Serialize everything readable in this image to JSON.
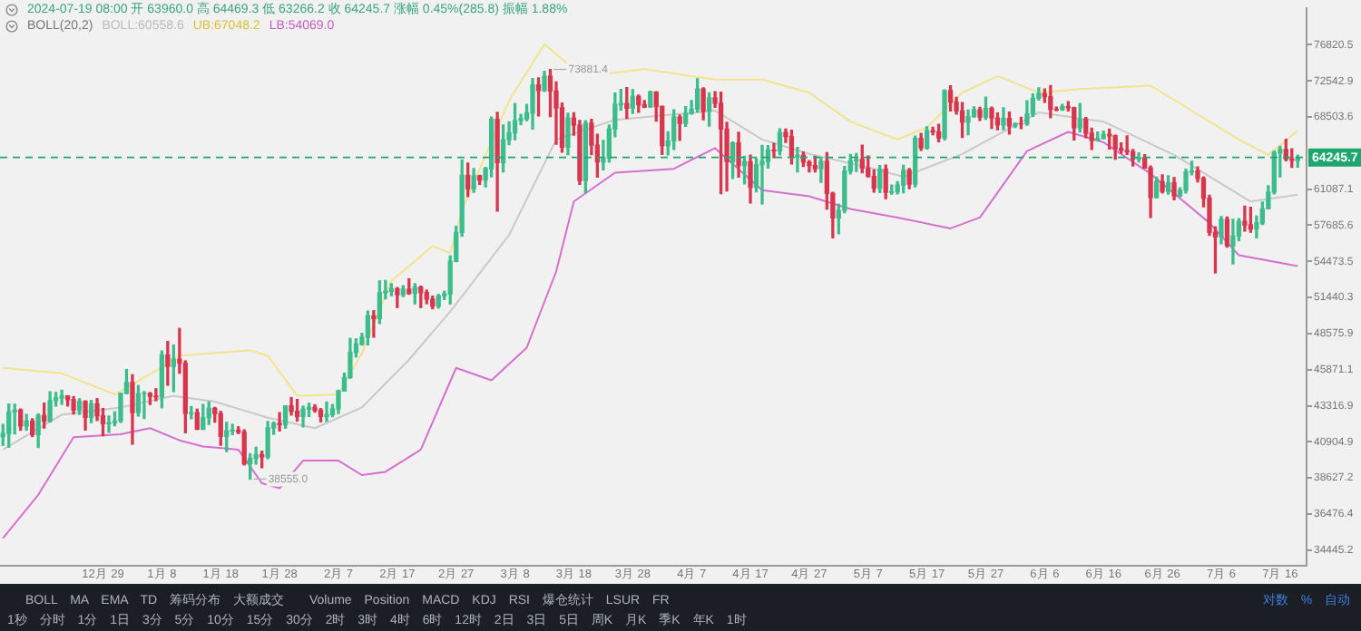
{
  "chart_data": {
    "type": "candlestick",
    "log": true,
    "x": [
      "2023-12-12",
      "2023-12-13",
      "2023-12-14",
      "2023-12-15",
      "2023-12-16",
      "2023-12-17",
      "2023-12-18",
      "2023-12-19",
      "2023-12-20",
      "2023-12-21",
      "2023-12-22",
      "2023-12-23",
      "2023-12-24",
      "2023-12-25",
      "2023-12-26",
      "2023-12-27",
      "2023-12-28",
      "2023-12-29",
      "2023-12-30",
      "2023-12-31",
      "2024-01-01",
      "2024-01-02",
      "2024-01-03",
      "2024-01-04",
      "2024-01-05",
      "2024-01-06",
      "2024-01-07",
      "2024-01-08",
      "2024-01-09",
      "2024-01-10",
      "2024-01-11",
      "2024-01-12",
      "2024-01-13",
      "2024-01-14",
      "2024-01-15",
      "2024-01-16",
      "2024-01-17",
      "2024-01-18",
      "2024-01-19",
      "2024-01-20",
      "2024-01-21",
      "2024-01-22",
      "2024-01-23",
      "2024-01-24",
      "2024-01-25",
      "2024-01-26",
      "2024-01-27",
      "2024-01-28",
      "2024-01-29",
      "2024-01-30",
      "2024-01-31",
      "2024-02-01",
      "2024-02-02",
      "2024-02-03",
      "2024-02-04",
      "2024-02-05",
      "2024-02-06",
      "2024-02-07",
      "2024-02-08",
      "2024-02-09",
      "2024-02-10",
      "2024-02-11",
      "2024-02-12",
      "2024-02-13",
      "2024-02-14",
      "2024-02-15",
      "2024-02-16",
      "2024-02-17",
      "2024-02-18",
      "2024-02-19",
      "2024-02-20",
      "2024-02-21",
      "2024-02-22",
      "2024-02-23",
      "2024-02-24",
      "2024-02-25",
      "2024-02-26",
      "2024-02-27",
      "2024-02-28",
      "2024-02-29",
      "2024-03-01",
      "2024-03-02",
      "2024-03-03",
      "2024-03-04",
      "2024-03-05",
      "2024-03-06",
      "2024-03-07",
      "2024-03-08",
      "2024-03-09",
      "2024-03-10",
      "2024-03-11",
      "2024-03-12",
      "2024-03-13",
      "2024-03-14",
      "2024-03-15",
      "2024-03-16",
      "2024-03-17",
      "2024-03-18",
      "2024-03-19",
      "2024-03-20",
      "2024-03-21",
      "2024-03-22",
      "2024-03-23",
      "2024-03-24",
      "2024-03-25",
      "2024-03-26",
      "2024-03-27",
      "2024-03-28",
      "2024-03-29",
      "2024-03-30",
      "2024-03-31",
      "2024-04-01",
      "2024-04-02",
      "2024-04-03",
      "2024-04-04",
      "2024-04-05",
      "2024-04-06",
      "2024-04-07",
      "2024-04-08",
      "2024-04-09",
      "2024-04-10",
      "2024-04-11",
      "2024-04-12",
      "2024-04-13",
      "2024-04-14",
      "2024-04-15",
      "2024-04-16",
      "2024-04-17",
      "2024-04-18",
      "2024-04-19",
      "2024-04-20",
      "2024-04-21",
      "2024-04-22",
      "2024-04-23",
      "2024-04-24",
      "2024-04-25",
      "2024-04-26",
      "2024-04-27",
      "2024-04-28",
      "2024-04-29",
      "2024-04-30",
      "2024-05-01",
      "2024-05-02",
      "2024-05-03",
      "2024-05-04",
      "2024-05-05",
      "2024-05-06",
      "2024-05-07",
      "2024-05-08",
      "2024-05-09",
      "2024-05-10",
      "2024-05-11",
      "2024-05-12",
      "2024-05-13",
      "2024-05-14",
      "2024-05-15",
      "2024-05-16",
      "2024-05-17",
      "2024-05-18",
      "2024-05-19",
      "2024-05-20",
      "2024-05-21",
      "2024-05-22",
      "2024-05-23",
      "2024-05-24",
      "2024-05-25",
      "2024-05-26",
      "2024-05-27",
      "2024-05-28",
      "2024-05-29",
      "2024-05-30",
      "2024-05-31",
      "2024-06-01",
      "2024-06-02",
      "2024-06-03",
      "2024-06-04",
      "2024-06-05",
      "2024-06-06",
      "2024-06-07",
      "2024-06-08",
      "2024-06-09",
      "2024-06-10",
      "2024-06-11",
      "2024-06-12",
      "2024-06-13",
      "2024-06-14",
      "2024-06-15",
      "2024-06-16",
      "2024-06-17",
      "2024-06-18",
      "2024-06-19",
      "2024-06-20",
      "2024-06-21",
      "2024-06-22",
      "2024-06-23",
      "2024-06-24",
      "2024-06-25",
      "2024-06-26",
      "2024-06-27",
      "2024-06-28",
      "2024-06-29",
      "2024-06-30",
      "2024-07-01",
      "2024-07-02",
      "2024-07-03",
      "2024-07-04",
      "2024-07-05",
      "2024-07-06",
      "2024-07-07",
      "2024-07-08",
      "2024-07-09",
      "2024-07-10",
      "2024-07-11",
      "2024-07-12",
      "2024-07-13",
      "2024-07-14",
      "2024-07-15",
      "2024-07-16",
      "2024-07-17",
      "2024-07-18",
      "2024-07-19"
    ],
    "ohlc": [
      [
        41243,
        42048,
        40676,
        41450
      ],
      [
        41450,
        43429,
        40555,
        42891
      ],
      [
        42891,
        43417,
        41424,
        43022
      ],
      [
        43022,
        43088,
        41666,
        41941
      ],
      [
        41941,
        42720,
        41666,
        42278
      ],
      [
        42278,
        42424,
        41249,
        41374
      ],
      [
        41374,
        42757,
        40542,
        42657
      ],
      [
        42657,
        43497,
        41811,
        42271
      ],
      [
        42271,
        44283,
        42213,
        43668
      ],
      [
        43668,
        44242,
        43291,
        43861
      ],
      [
        43861,
        44398,
        43412,
        43997
      ],
      [
        43997,
        43997,
        43300,
        43740
      ],
      [
        43740,
        43946,
        42748,
        43016
      ],
      [
        43016,
        43801,
        42720,
        43613
      ],
      [
        43613,
        43655,
        41676,
        42520
      ],
      [
        42520,
        43683,
        42167,
        43442
      ],
      [
        43442,
        43804,
        42318,
        42628
      ],
      [
        42628,
        43124,
        41300,
        42099
      ],
      [
        42099,
        42612,
        41520,
        42156
      ],
      [
        42156,
        42899,
        41965,
        42283
      ],
      [
        42283,
        44184,
        42180,
        44179
      ],
      [
        44179,
        45879,
        44148,
        44946
      ],
      [
        44946,
        45500,
        40750,
        42845
      ],
      [
        42845,
        44729,
        42613,
        44152
      ],
      [
        44152,
        44300,
        42450,
        44162
      ],
      [
        44162,
        44227,
        43400,
        43974
      ],
      [
        43974,
        44495,
        43662,
        43929
      ],
      [
        43929,
        47248,
        43175,
        46951
      ],
      [
        46951,
        47972,
        44748,
        46110
      ],
      [
        46110,
        47695,
        44300,
        46633
      ],
      [
        46633,
        48970,
        45606,
        46339
      ],
      [
        46339,
        46516,
        41500,
        42782
      ],
      [
        42782,
        43257,
        42436,
        42847
      ],
      [
        42847,
        43079,
        41720,
        41732
      ],
      [
        41732,
        43400,
        41718,
        42511
      ],
      [
        42511,
        43578,
        42050,
        43137
      ],
      [
        43137,
        43198,
        42200,
        42776
      ],
      [
        42776,
        42930,
        40683,
        41262
      ],
      [
        41262,
        42195,
        40280,
        41618
      ],
      [
        41618,
        42050,
        41380,
        41665
      ],
      [
        41665,
        41890,
        41446,
        41545
      ],
      [
        41545,
        41689,
        39431,
        39507
      ],
      [
        39507,
        40132,
        38555.0,
        39845
      ],
      [
        39845,
        40555,
        39485,
        40077
      ],
      [
        40077,
        40300,
        39261,
        39934
      ],
      [
        39934,
        42246,
        39822,
        41816
      ],
      [
        41816,
        42200,
        41394,
        42120
      ],
      [
        42120,
        42842,
        41620,
        42031
      ],
      [
        42031,
        43305,
        41804,
        43302
      ],
      [
        43302,
        43882,
        42683,
        42941
      ],
      [
        42941,
        43745,
        42276,
        42580
      ],
      [
        42580,
        43285,
        41884,
        43082
      ],
      [
        43082,
        43488,
        42574,
        43200
      ],
      [
        43200,
        43380,
        42880,
        43011
      ],
      [
        43011,
        43119,
        42222,
        42582
      ],
      [
        42582,
        43569,
        42258,
        42708
      ],
      [
        42708,
        43399,
        42574,
        43099
      ],
      [
        43099,
        44396,
        42788,
        44339
      ],
      [
        44339,
        45614,
        44332,
        45301
      ],
      [
        45301,
        48200,
        45243,
        47147
      ],
      [
        47147,
        48170,
        46800,
        47771
      ],
      [
        47771,
        48592,
        47691,
        48293
      ],
      [
        48293,
        50334,
        47710,
        49958
      ],
      [
        49958,
        50368,
        48300,
        49743
      ],
      [
        49743,
        52816,
        49357,
        51826
      ],
      [
        51826,
        52849,
        51325,
        51939
      ],
      [
        51939,
        52574,
        51577,
        52160
      ],
      [
        52160,
        52250,
        50625,
        51663
      ],
      [
        51663,
        52400,
        51515,
        52122
      ],
      [
        52122,
        52985,
        51706,
        51779
      ],
      [
        51779,
        52579,
        50913,
        52284
      ],
      [
        52284,
        52374,
        50625,
        51839
      ],
      [
        51839,
        52040,
        50936,
        51304
      ],
      [
        51304,
        51548,
        50521,
        50731
      ],
      [
        50731,
        51685,
        50585,
        51571
      ],
      [
        51571,
        51950,
        51280,
        51733
      ],
      [
        51733,
        54938,
        50901,
        54476
      ],
      [
        54476,
        57588,
        54450,
        57037
      ],
      [
        57037,
        64000,
        56691,
        62432
      ],
      [
        62432,
        63676,
        60364,
        61130
      ],
      [
        61130,
        63114,
        60777,
        62387
      ],
      [
        62387,
        62433,
        61561,
        61987
      ],
      [
        61987,
        63231,
        61321,
        63113
      ],
      [
        63113,
        68499,
        62300,
        68245
      ],
      [
        68245,
        69000,
        59005,
        63724
      ],
      [
        63724,
        67637,
        62787,
        66074
      ],
      [
        66074,
        67985,
        65551,
        66823
      ],
      [
        66823,
        69990,
        66082,
        68124
      ],
      [
        68124,
        68800,
        67700,
        68313
      ],
      [
        68313,
        69887,
        68094,
        68955
      ],
      [
        68955,
        72800,
        67194,
        72078
      ],
      [
        72078,
        72890,
        68620,
        71452
      ],
      [
        71452,
        73650,
        71333,
        73072
      ],
      [
        73072,
        73881.4,
        68555,
        71388
      ],
      [
        71388,
        72419,
        65600,
        69499
      ],
      [
        69499,
        70043,
        64780,
        65300
      ],
      [
        65300,
        68904,
        64533,
        68393
      ],
      [
        68393,
        68956,
        66565,
        67609
      ],
      [
        67609,
        68124,
        61555,
        61937
      ],
      [
        61937,
        68100,
        60775,
        67840
      ],
      [
        67840,
        68240,
        64529,
        65501
      ],
      [
        65501,
        66650,
        62260,
        63796
      ],
      [
        63796,
        65999,
        63000,
        64209
      ],
      [
        64209,
        67628,
        63772,
        67211
      ],
      [
        67211,
        71150,
        66385,
        69880
      ],
      [
        69880,
        71561,
        69280,
        69988
      ],
      [
        69988,
        71769,
        68359,
        69469
      ],
      [
        69469,
        71552,
        68903,
        70780
      ],
      [
        70780,
        70916,
        69009,
        69850
      ],
      [
        69850,
        70321,
        69540,
        69582
      ],
      [
        69582,
        71366,
        69562,
        71280
      ],
      [
        71280,
        71288,
        68062,
        69649
      ],
      [
        69649,
        69674,
        64550,
        65463
      ],
      [
        65463,
        66903,
        64493,
        65963
      ],
      [
        65963,
        69291,
        65064,
        68487
      ],
      [
        68487,
        68725,
        66011,
        67820
      ],
      [
        67820,
        69629,
        67491,
        68896
      ],
      [
        68896,
        70326,
        68824,
        69360
      ],
      [
        69360,
        72797,
        69043,
        71620
      ],
      [
        71620,
        71758,
        68210,
        69146
      ],
      [
        69146,
        71172,
        67518,
        70631
      ],
      [
        70631,
        71305,
        69567,
        70007
      ],
      [
        70007,
        71256,
        60660,
        67195
      ],
      [
        67195,
        67932,
        60919,
        63818
      ],
      [
        63818,
        65840,
        62134,
        65738
      ],
      [
        65738,
        66867,
        62274,
        63426
      ],
      [
        63426,
        64365,
        61600,
        63811
      ],
      [
        63811,
        64486,
        59768,
        61276
      ],
      [
        61276,
        64125,
        60833,
        63512
      ],
      [
        63512,
        65481,
        59651,
        63843
      ],
      [
        63843,
        65450,
        63172,
        64994
      ],
      [
        64994,
        65695,
        64237,
        64927
      ],
      [
        64927,
        67233,
        64500,
        66837
      ],
      [
        66837,
        67199,
        65800,
        66407
      ],
      [
        66407,
        67075,
        63589,
        64276
      ],
      [
        64276,
        65275,
        62783,
        64481
      ],
      [
        64481,
        64792,
        63322,
        63755
      ],
      [
        63755,
        63926,
        62793,
        63419
      ],
      [
        63419,
        64361,
        62793,
        63114
      ],
      [
        63114,
        64228,
        61765,
        63842
      ],
      [
        63842,
        64734,
        59191,
        60672
      ],
      [
        60672,
        60780,
        56552,
        58364
      ],
      [
        58364,
        59625,
        56911,
        59060
      ],
      [
        59060,
        63320,
        58848,
        62882
      ],
      [
        62882,
        64544,
        62574,
        63892
      ],
      [
        63892,
        64646,
        62822,
        64038
      ],
      [
        64038,
        65500,
        62700,
        63162
      ],
      [
        63162,
        64390,
        62285,
        62334
      ],
      [
        62334,
        62984,
        60800,
        61188
      ],
      [
        61188,
        63421,
        60769,
        63049
      ],
      [
        63049,
        63469,
        60187,
        60793
      ],
      [
        60793,
        61490,
        60610,
        60826
      ],
      [
        60826,
        61819,
        60631,
        61484
      ],
      [
        61484,
        63450,
        60750,
        62940
      ],
      [
        62940,
        63118,
        61142,
        61578
      ],
      [
        61578,
        66444,
        61319,
        66206
      ],
      [
        66206,
        66752,
        64975,
        65235
      ],
      [
        65235,
        67451,
        65106,
        67025
      ],
      [
        67025,
        67387,
        66600,
        66915
      ],
      [
        66915,
        67700,
        65858,
        66274
      ],
      [
        66274,
        71515,
        66060,
        71446
      ],
      [
        71446,
        71979,
        69162,
        70148
      ],
      [
        70148,
        70666,
        68832,
        69166
      ],
      [
        69166,
        70096,
        66312,
        67969
      ],
      [
        67969,
        69250,
        66600,
        68549
      ],
      [
        68549,
        69610,
        68500,
        69290
      ],
      [
        69290,
        69562,
        68128,
        68507
      ],
      [
        68507,
        70687,
        68250,
        69436
      ],
      [
        69436,
        69591,
        67277,
        68398
      ],
      [
        68398,
        68935,
        67124,
        67652
      ],
      [
        67652,
        69500,
        67128,
        68352
      ],
      [
        68352,
        69044,
        66670,
        67540
      ],
      [
        67540,
        67857,
        67387,
        67766
      ],
      [
        67766,
        68460,
        67257,
        67765
      ],
      [
        67765,
        70288,
        67612,
        68809
      ],
      [
        68809,
        71063,
        68567,
        70567
      ],
      [
        70567,
        71758,
        70383,
        71082
      ],
      [
        71082,
        71625,
        70119,
        70757
      ],
      [
        70757,
        71997,
        68420,
        69342
      ],
      [
        69342,
        69584,
        69184,
        69305
      ],
      [
        69305,
        69887,
        69232,
        69647
      ],
      [
        69647,
        70195,
        69172,
        69512
      ],
      [
        69512,
        69568,
        66051,
        67321
      ],
      [
        67321,
        69999,
        66902,
        68243
      ],
      [
        68243,
        68449,
        66303,
        66756
      ],
      [
        66756,
        67294,
        65056,
        66011
      ],
      [
        66011,
        66895,
        65998,
        66191
      ],
      [
        66191,
        66983,
        66191,
        66639
      ],
      [
        66639,
        67188,
        65104,
        66490
      ],
      [
        66490,
        66556,
        64066,
        65140
      ],
      [
        65140,
        65738,
        64693,
        64960
      ],
      [
        64960,
        66482,
        64559,
        64828
      ],
      [
        64828,
        65066,
        63379,
        64096
      ],
      [
        64096,
        64700,
        63800,
        64252
      ],
      [
        64252,
        64524,
        63180,
        63180
      ],
      [
        63180,
        63369,
        58402,
        60277
      ],
      [
        60277,
        62258,
        60239,
        61806
      ],
      [
        61806,
        62487,
        60712,
        60864
      ],
      [
        60864,
        62389,
        60606,
        61706
      ],
      [
        61706,
        62225,
        60063,
        60427
      ],
      [
        60427,
        61224,
        60383,
        60986
      ],
      [
        60986,
        63058,
        60712,
        62772
      ],
      [
        62772,
        63861,
        62497,
        62899
      ],
      [
        62899,
        63288,
        61806,
        62135
      ],
      [
        62135,
        62285,
        59400,
        60208
      ],
      [
        60208,
        60499,
        56771,
        57050
      ],
      [
        57050,
        57546,
        53485,
        56628
      ],
      [
        56628,
        58475,
        56018,
        58231
      ],
      [
        58231,
        58449,
        55724,
        55857
      ],
      [
        55857,
        58236,
        54260,
        56714
      ],
      [
        56714,
        58296,
        56289,
        58050
      ],
      [
        58050,
        59470,
        57157,
        57725
      ],
      [
        57725,
        59359,
        57053,
        57339
      ],
      [
        57339,
        58526,
        56542,
        57889
      ],
      [
        57889,
        59850,
        57756,
        59204
      ],
      [
        59204,
        61420,
        59204,
        60798
      ],
      [
        60798,
        64900,
        60632,
        64724
      ],
      [
        64724,
        65388,
        62300,
        65047
      ],
      [
        65047,
        66128,
        63900,
        64087
      ],
      [
        64087,
        65133,
        63238,
        63960
      ],
      [
        63960.0,
        64469.3,
        63266.2,
        64245.7
      ]
    ],
    "series": [
      {
        "type": "line",
        "color": "#c9c9c9",
        "x": [
          "2023-12-12",
          "2023-12-22",
          "2024-01-01",
          "2024-01-10",
          "2024-01-17",
          "2024-01-26",
          "2024-02-03",
          "2024-02-11",
          "2024-02-19",
          "2024-02-26",
          "2024-03-07",
          "2024-03-15",
          "2024-03-25",
          "2024-04-01",
          "2024-04-11",
          "2024-04-19",
          "2024-04-27",
          "2024-05-08",
          "2024-05-13",
          "2024-05-23",
          "2024-06-05",
          "2024-06-16",
          "2024-06-28",
          "2024-07-11",
          "2024-07-19"
        ],
        "values": [
          40400,
          42700,
          43200,
          44000,
          43600,
          42500,
          41800,
          43200,
          46600,
          50300,
          56800,
          66100,
          68200,
          68600,
          69200,
          66100,
          64600,
          63100,
          62300,
          64600,
          69000,
          68000,
          64500,
          59900,
          60558.6
        ]
      },
      {
        "type": "line",
        "color": "#f2e48c",
        "x": [
          "2023-12-12",
          "2023-12-22",
          "2023-12-31",
          "2024-01-07",
          "2024-01-11",
          "2024-01-23",
          "2024-01-26",
          "2024-01-31",
          "2024-02-07",
          "2024-02-11",
          "2024-02-16",
          "2024-02-23",
          "2024-02-26",
          "2024-02-28",
          "2024-03-07",
          "2024-03-13",
          "2024-03-18",
          "2024-03-24",
          "2024-03-30",
          "2024-04-11",
          "2024-04-19",
          "2024-04-27",
          "2024-05-04",
          "2024-05-12",
          "2024-05-17",
          "2024-05-23",
          "2024-05-29",
          "2024-06-05",
          "2024-06-12",
          "2024-06-24",
          "2024-07-01",
          "2024-07-09",
          "2024-07-14",
          "2024-07-19"
        ],
        "values": [
          46000,
          45600,
          44100,
          45800,
          46900,
          47300,
          46900,
          44000,
          44100,
          47100,
          52800,
          55800,
          55200,
          59100,
          70300,
          76900,
          73900,
          73400,
          73900,
          72700,
          72700,
          71200,
          68000,
          66100,
          67400,
          71200,
          73100,
          71200,
          71600,
          72000,
          69200,
          66100,
          64500,
          67048.2
        ]
      },
      {
        "type": "line",
        "color": "#d66fd0",
        "x": [
          "2023-12-12",
          "2023-12-18",
          "2023-12-24",
          "2024-01-01",
          "2024-01-06",
          "2024-01-11",
          "2024-01-15",
          "2024-01-21",
          "2024-01-25",
          "2024-01-28",
          "2024-02-01",
          "2024-02-07",
          "2024-02-11",
          "2024-02-15",
          "2024-02-21",
          "2024-02-27",
          "2024-03-04",
          "2024-03-10",
          "2024-03-15",
          "2024-03-18",
          "2024-03-25",
          "2024-04-04",
          "2024-04-11",
          "2024-04-19",
          "2024-04-27",
          "2024-05-04",
          "2024-05-12",
          "2024-05-21",
          "2024-05-26",
          "2024-06-03",
          "2024-06-10",
          "2024-06-16",
          "2024-06-24",
          "2024-07-04",
          "2024-07-09",
          "2024-07-19"
        ],
        "values": [
          35100,
          37600,
          41200,
          41400,
          41800,
          41000,
          40600,
          40400,
          38300,
          38000,
          39700,
          39700,
          38800,
          39000,
          40400,
          46000,
          45100,
          47500,
          53600,
          59900,
          62700,
          63100,
          65200,
          61000,
          60400,
          59200,
          58400,
          57400,
          58400,
          64900,
          66900,
          65800,
          62600,
          57900,
          55000,
          54069.0
        ]
      }
    ],
    "xlim": [
      "2023-12-11T12:00",
      "2024-07-20T12:00"
    ],
    "xticks": [
      {
        "value": "2023-12-29",
        "label": "12月 29"
      },
      {
        "value": "2024-01-08",
        "label": "1月 8"
      },
      {
        "value": "2024-01-18",
        "label": "1月 18"
      },
      {
        "value": "2024-01-28",
        "label": "1月 28"
      },
      {
        "value": "2024-02-07",
        "label": "2月 7"
      },
      {
        "value": "2024-02-17",
        "label": "2月 17"
      },
      {
        "value": "2024-02-27",
        "label": "2月 27"
      },
      {
        "value": "2024-03-08",
        "label": "3月 8"
      },
      {
        "value": "2024-03-18",
        "label": "3月 18"
      },
      {
        "value": "2024-03-28",
        "label": "3月 28"
      },
      {
        "value": "2024-04-07",
        "label": "4月 7"
      },
      {
        "value": "2024-04-17",
        "label": "4月 17"
      },
      {
        "value": "2024-04-27",
        "label": "4月 27"
      },
      {
        "value": "2024-05-07",
        "label": "5月 7"
      },
      {
        "value": "2024-05-17",
        "label": "5月 17"
      },
      {
        "value": "2024-05-27",
        "label": "5月 27"
      },
      {
        "value": "2024-06-06",
        "label": "6月 6"
      },
      {
        "value": "2024-06-16",
        "label": "6月 16"
      },
      {
        "value": "2024-06-26",
        "label": "6月 26"
      },
      {
        "value": "2024-07-06",
        "label": "7月 6"
      },
      {
        "value": "2024-07-16",
        "label": "7月 16"
      }
    ],
    "ylim": [
      33600,
      81400
    ],
    "yticks": [
      34445.2,
      36476.4,
      38627.2,
      40904.9,
      43316.9,
      45871.1,
      48575.9,
      51440.3,
      54473.5,
      57685.6,
      61087.1,
      68503.6,
      72542.9,
      76820.5
    ],
    "grid": false,
    "legend": false,
    "marker": "none",
    "ref_lines": [
      {
        "axis": "y",
        "value": 64245.7,
        "label": "64245.7",
        "color": "#1fa56e",
        "line_style": "dashed"
      }
    ],
    "annotations": [
      "2024-07-19 08:00 开 63960.0 高 64469.3 低 63266.2 收 64245.7 涨幅 0.45%(285.8) 振幅 1.88%",
      "BOLL(20,2)",
      "BOLL:60558.6",
      "UB:67048.2",
      "LB:54069.0",
      "BOLL MA EMA TD 筹码分布 大额成交",
      "Volume Position MACD KDJ RSI 爆仓统计 LSUR FR",
      "对数 % 自动",
      "1秒 分时 1分 1日 3分 5分 10分 15分 30分 2时 3时 4时 6时 12时 2日 3日 5日 周K 月K 季K 年K 1时",
      {
        "text": "73881.4",
        "x": "2024-03-14",
        "y": 73881.4
      },
      {
        "text": "38555.0",
        "x": "2024-01-23",
        "y": 38555.0
      }
    ]
  }
}
